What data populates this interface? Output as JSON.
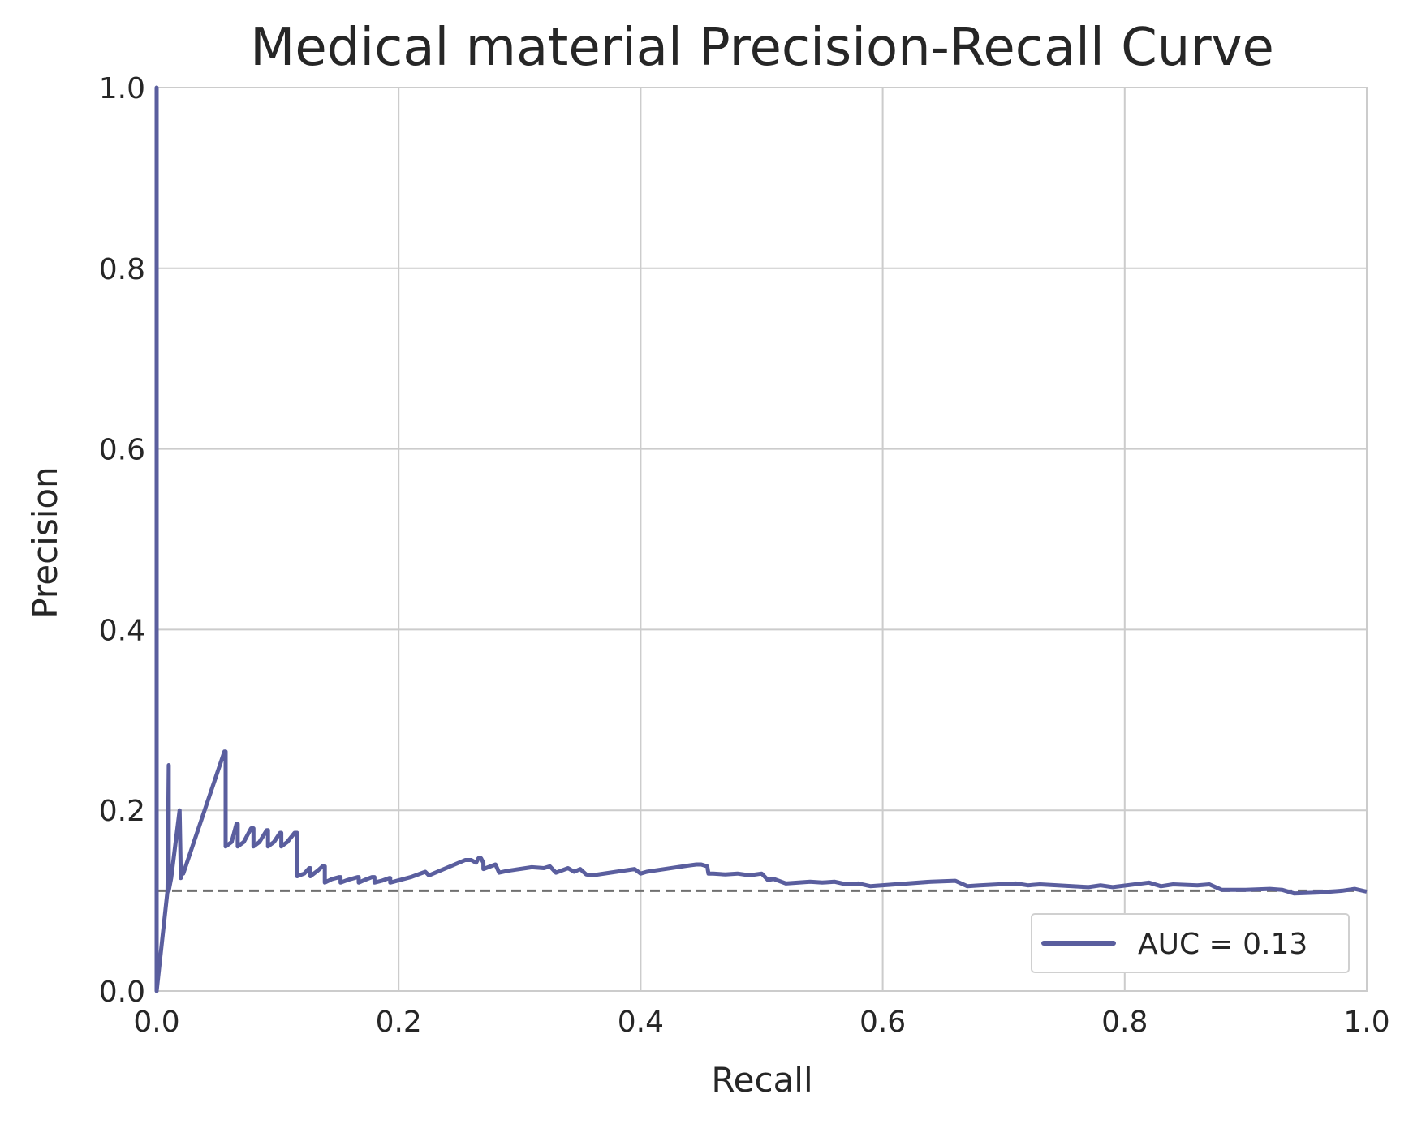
{
  "chart_data": {
    "type": "line",
    "title": "Medical material Precision-Recall Curve",
    "xlabel": "Recall",
    "ylabel": "Precision",
    "xlim": [
      0.0,
      1.0
    ],
    "ylim": [
      0.0,
      1.0
    ],
    "x_ticks": [
      "0.0",
      "0.2",
      "0.4",
      "0.6",
      "0.8",
      "1.0"
    ],
    "y_ticks": [
      "0.0",
      "0.2",
      "0.4",
      "0.6",
      "0.8",
      "1.0"
    ],
    "grid": true,
    "legend_position": "lower-right",
    "series": [
      {
        "name": "AUC = 0.13",
        "color": "#5a5e9e",
        "x": [
          0.0,
          0.0,
          0.0,
          0.009,
          0.01,
          0.01,
          0.012,
          0.019,
          0.02,
          0.02,
          0.022,
          0.056,
          0.057,
          0.057,
          0.062,
          0.066,
          0.067,
          0.067,
          0.072,
          0.078,
          0.08,
          0.08,
          0.085,
          0.091,
          0.092,
          0.092,
          0.097,
          0.102,
          0.103,
          0.103,
          0.108,
          0.114,
          0.116,
          0.116,
          0.122,
          0.126,
          0.127,
          0.127,
          0.133,
          0.137,
          0.139,
          0.139,
          0.145,
          0.151,
          0.152,
          0.152,
          0.158,
          0.166,
          0.167,
          0.167,
          0.172,
          0.178,
          0.18,
          0.18,
          0.186,
          0.192,
          0.193,
          0.193,
          0.21,
          0.222,
          0.225,
          0.255,
          0.26,
          0.264,
          0.266,
          0.268,
          0.27,
          0.27,
          0.28,
          0.283,
          0.29,
          0.305,
          0.31,
          0.32,
          0.325,
          0.33,
          0.34,
          0.345,
          0.35,
          0.355,
          0.36,
          0.395,
          0.4,
          0.405,
          0.41,
          0.44,
          0.446,
          0.45,
          0.455,
          0.456,
          0.46,
          0.47,
          0.48,
          0.49,
          0.5,
          0.505,
          0.51,
          0.52,
          0.54,
          0.55,
          0.56,
          0.57,
          0.58,
          0.59,
          0.64,
          0.66,
          0.67,
          0.68,
          0.71,
          0.72,
          0.73,
          0.77,
          0.78,
          0.79,
          0.82,
          0.83,
          0.84,
          0.86,
          0.87,
          0.88,
          0.9,
          0.92,
          0.93,
          0.94,
          0.96,
          0.97,
          0.98,
          0.99,
          1.0
        ],
        "y": [
          0.0,
          1.0,
          0.0,
          0.111,
          0.25,
          0.111,
          0.125,
          0.2,
          0.125,
          0.13,
          0.13,
          0.265,
          0.265,
          0.16,
          0.165,
          0.185,
          0.185,
          0.16,
          0.165,
          0.18,
          0.18,
          0.16,
          0.165,
          0.178,
          0.178,
          0.16,
          0.165,
          0.175,
          0.175,
          0.16,
          0.165,
          0.175,
          0.175,
          0.127,
          0.13,
          0.136,
          0.136,
          0.127,
          0.133,
          0.138,
          0.138,
          0.12,
          0.124,
          0.126,
          0.126,
          0.12,
          0.123,
          0.126,
          0.126,
          0.12,
          0.123,
          0.126,
          0.126,
          0.12,
          0.122,
          0.125,
          0.125,
          0.12,
          0.126,
          0.132,
          0.128,
          0.145,
          0.145,
          0.142,
          0.147,
          0.147,
          0.142,
          0.135,
          0.14,
          0.131,
          0.133,
          0.136,
          0.137,
          0.136,
          0.138,
          0.131,
          0.136,
          0.132,
          0.135,
          0.129,
          0.128,
          0.135,
          0.13,
          0.132,
          0.133,
          0.139,
          0.14,
          0.14,
          0.138,
          0.13,
          0.13,
          0.129,
          0.13,
          0.128,
          0.13,
          0.123,
          0.124,
          0.119,
          0.121,
          0.12,
          0.121,
          0.118,
          0.119,
          0.116,
          0.121,
          0.122,
          0.116,
          0.117,
          0.119,
          0.117,
          0.118,
          0.115,
          0.117,
          0.115,
          0.12,
          0.116,
          0.118,
          0.117,
          0.118,
          0.112,
          0.112,
          0.113,
          0.112,
          0.108,
          0.109,
          0.11,
          0.111,
          0.113,
          0.11
        ]
      }
    ],
    "baseline": {
      "y": 0.111,
      "color": "#707070",
      "style": "dashed"
    },
    "colors": {
      "grid": "#cccccc",
      "spine": "#cccccc",
      "text": "#262626",
      "legend_border": "#d0d0d0"
    }
  }
}
